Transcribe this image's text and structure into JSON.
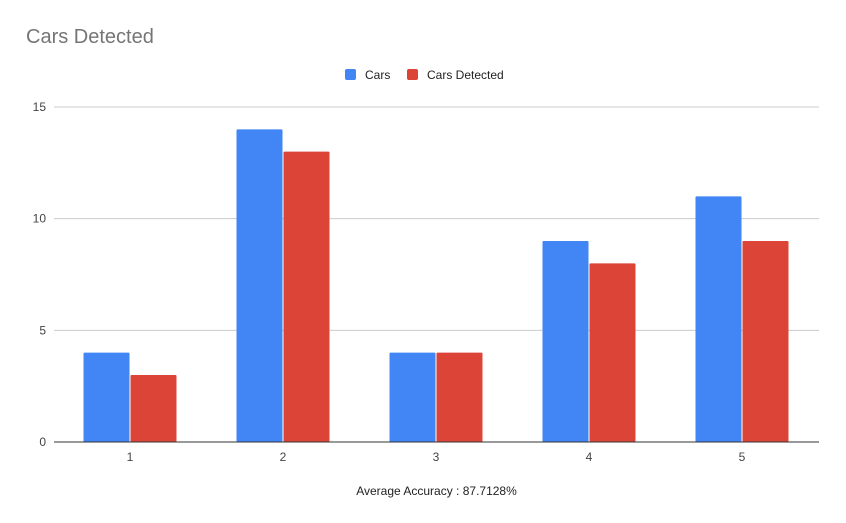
{
  "chart_data": {
    "type": "bar",
    "title": "Cars Detected",
    "xlabel": "Average Accuracy : 87.7128%",
    "ylabel": "",
    "categories": [
      "1",
      "2",
      "3",
      "4",
      "5"
    ],
    "series": [
      {
        "name": "Cars",
        "values": [
          4,
          14,
          4,
          9,
          11
        ],
        "color": "#4285f4"
      },
      {
        "name": "Cars Detected",
        "values": [
          3,
          13,
          4,
          8,
          9
        ],
        "color": "#db4437"
      }
    ],
    "ylim": [
      0,
      15
    ],
    "yticks": [
      0,
      5,
      10,
      15
    ],
    "grid": true,
    "legend_position": "top-center"
  }
}
